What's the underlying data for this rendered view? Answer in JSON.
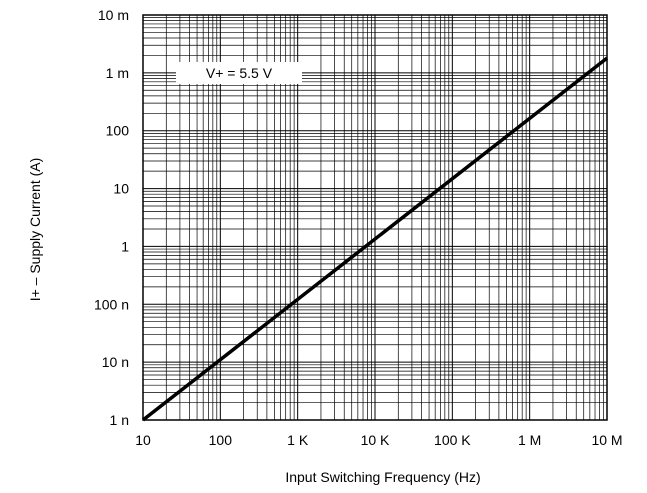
{
  "chart_data": {
    "type": "line",
    "title": "",
    "xlabel": "Input Switching Frequency (Hz)",
    "ylabel": "I+ – Supply Current (A)",
    "x_scale": "log",
    "y_scale": "log",
    "xlim": [
      10,
      10000000
    ],
    "ylim": [
      1e-09,
      0.01
    ],
    "grid": true,
    "x_ticks": [
      {
        "value": 10,
        "label": "10"
      },
      {
        "value": 100,
        "label": "100"
      },
      {
        "value": 1000,
        "label": "1 K"
      },
      {
        "value": 10000,
        "label": "10 K"
      },
      {
        "value": 100000,
        "label": "100 K"
      },
      {
        "value": 1000000,
        "label": "1 M"
      },
      {
        "value": 10000000,
        "label": "10 M"
      }
    ],
    "y_ticks": [
      {
        "value": 1e-09,
        "label": "1 n"
      },
      {
        "value": 1e-08,
        "label": "10 n"
      },
      {
        "value": 1e-07,
        "label": "100 n"
      },
      {
        "value": 1e-06,
        "label": "1"
      },
      {
        "value": 1e-05,
        "label": "10"
      },
      {
        "value": 0.0001,
        "label": "100"
      },
      {
        "value": 0.001,
        "label": "1 m"
      },
      {
        "value": 0.01,
        "label": "10 m"
      }
    ],
    "annotations": [
      {
        "text": "V+ = 5.5 V"
      }
    ],
    "series": [
      {
        "x": [
          10,
          10000000
        ],
        "y": [
          1e-09,
          0.0018
        ]
      }
    ]
  }
}
